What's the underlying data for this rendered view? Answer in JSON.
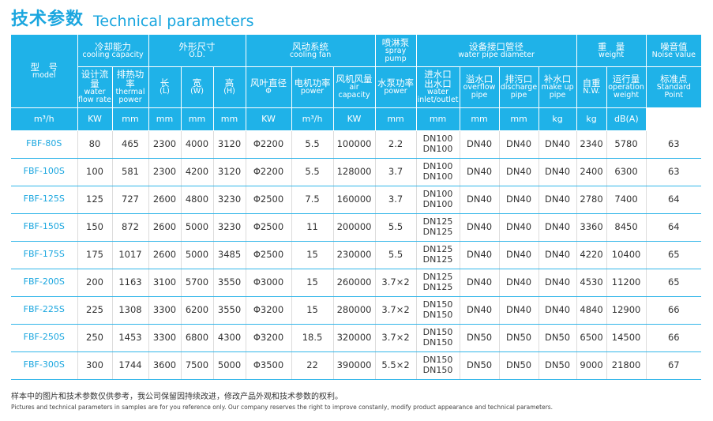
{
  "title": {
    "cn": "技术参数",
    "en": "Technical parameters"
  },
  "header": {
    "model": {
      "cn": "型　号",
      "en": "model"
    },
    "cooling_capacity": {
      "cn": "冷却能力",
      "en": "cooling capacity"
    },
    "od": {
      "cn": "外形尺寸",
      "en": "O.D."
    },
    "cooling_fan": {
      "cn": "风动系统",
      "en": "cooling fan"
    },
    "spray_pump": {
      "cn": "喷淋泵",
      "en": "spray pump"
    },
    "pipe": {
      "cn": "设备接口管径",
      "en": "water pipe diameter"
    },
    "weight": {
      "cn": "重　量",
      "en": "weight"
    },
    "noise": {
      "cn": "噪音值",
      "en": "Noise value"
    },
    "sub": {
      "flow": {
        "cn": "设计流量",
        "en": "water flow rate"
      },
      "thermal": {
        "cn": "排热功率",
        "en": "thermal power"
      },
      "length": {
        "cn": "长",
        "en": "(L)"
      },
      "width": {
        "cn": "宽",
        "en": "(W)"
      },
      "height": {
        "cn": "高",
        "en": "(H)"
      },
      "fan_dia": {
        "cn": "风叶直径",
        "en": "Φ"
      },
      "motor": {
        "cn": "电机功率",
        "en": "power"
      },
      "air": {
        "cn": "风机风量",
        "en": "air capacity"
      },
      "pump_power": {
        "cn": "水泵功率",
        "en": "power"
      },
      "inout": {
        "cn": "进水口\n出水口",
        "en": "water inlet/outlet"
      },
      "overflow": {
        "cn": "溢水口",
        "en": "overflow pipe"
      },
      "discharge": {
        "cn": "排污口",
        "en": "discharge pipe"
      },
      "makeup": {
        "cn": "补水口",
        "en": "make up pipe"
      },
      "nw": {
        "cn": "自重",
        "en": "N.W."
      },
      "op": {
        "cn": "运行量",
        "en": "operation weight"
      },
      "std": {
        "cn": "标准点",
        "en": "Standard Point"
      }
    },
    "units": [
      "m³/h",
      "KW",
      "mm",
      "mm",
      "mm",
      "mm",
      "KW",
      "m³/h",
      "KW",
      "mm",
      "mm",
      "mm",
      "mm",
      "kg",
      "kg",
      "dB(A)"
    ]
  },
  "rows": [
    [
      "FBF-80S",
      "80",
      "465",
      "2300",
      "4000",
      "3120",
      "Φ2200",
      "5.5",
      "100000",
      "2.2",
      "DN100\nDN100",
      "DN40",
      "DN40",
      "DN40",
      "2340",
      "5780",
      "63"
    ],
    [
      "FBF-100S",
      "100",
      "581",
      "2300",
      "4200",
      "3120",
      "Φ2200",
      "5.5",
      "128000",
      "3.7",
      "DN100\nDN100",
      "DN40",
      "DN40",
      "DN40",
      "2400",
      "6300",
      "63"
    ],
    [
      "FBF-125S",
      "125",
      "727",
      "2600",
      "4800",
      "3230",
      "Φ2500",
      "7.5",
      "160000",
      "3.7",
      "DN100\nDN100",
      "DN40",
      "DN40",
      "DN40",
      "2780",
      "7400",
      "64"
    ],
    [
      "FBF-150S",
      "150",
      "872",
      "2600",
      "5000",
      "3230",
      "Φ2500",
      "11",
      "200000",
      "5.5",
      "DN125\nDN125",
      "DN40",
      "DN40",
      "DN40",
      "3360",
      "8450",
      "64"
    ],
    [
      "FBF-175S",
      "175",
      "1017",
      "2600",
      "5000",
      "3485",
      "Φ2500",
      "15",
      "230000",
      "5.5",
      "DN125\nDN125",
      "DN40",
      "DN40",
      "DN40",
      "4220",
      "10400",
      "65"
    ],
    [
      "FBF-200S",
      "200",
      "1163",
      "3100",
      "5700",
      "3550",
      "Φ3000",
      "15",
      "260000",
      "3.7×2",
      "DN125\nDN125",
      "DN40",
      "DN40",
      "DN40",
      "4530",
      "11200",
      "65"
    ],
    [
      "FBF-225S",
      "225",
      "1308",
      "3300",
      "6200",
      "3550",
      "Φ3200",
      "15",
      "280000",
      "3.7×2",
      "DN150\nDN150",
      "DN40",
      "DN40",
      "DN40",
      "4840",
      "12900",
      "66"
    ],
    [
      "FBF-250S",
      "250",
      "1453",
      "3300",
      "6800",
      "4300",
      "Φ3200",
      "18.5",
      "320000",
      "3.7×2",
      "DN150\nDN150",
      "DN50",
      "DN50",
      "DN50",
      "6500",
      "14500",
      "66"
    ],
    [
      "FBF-300S",
      "300",
      "1744",
      "3600",
      "7500",
      "5000",
      "Φ3500",
      "22",
      "390000",
      "5.5×2",
      "DN150\nDN150",
      "DN50",
      "DN50",
      "DN50",
      "9000",
      "21800",
      "67"
    ]
  ],
  "note": {
    "cn": "样本中的图片和技术参数仅供参考，我公司保留因持续改进，修改产品外观和技术参数的权利。",
    "en": "Pictures and technical parameters in samples are for you reference only. Our company reserves the right to improve constanly, modify product appearance and technical parameters."
  },
  "colors": {
    "accent": "#1fb2e8",
    "title": "#1aa6df"
  }
}
